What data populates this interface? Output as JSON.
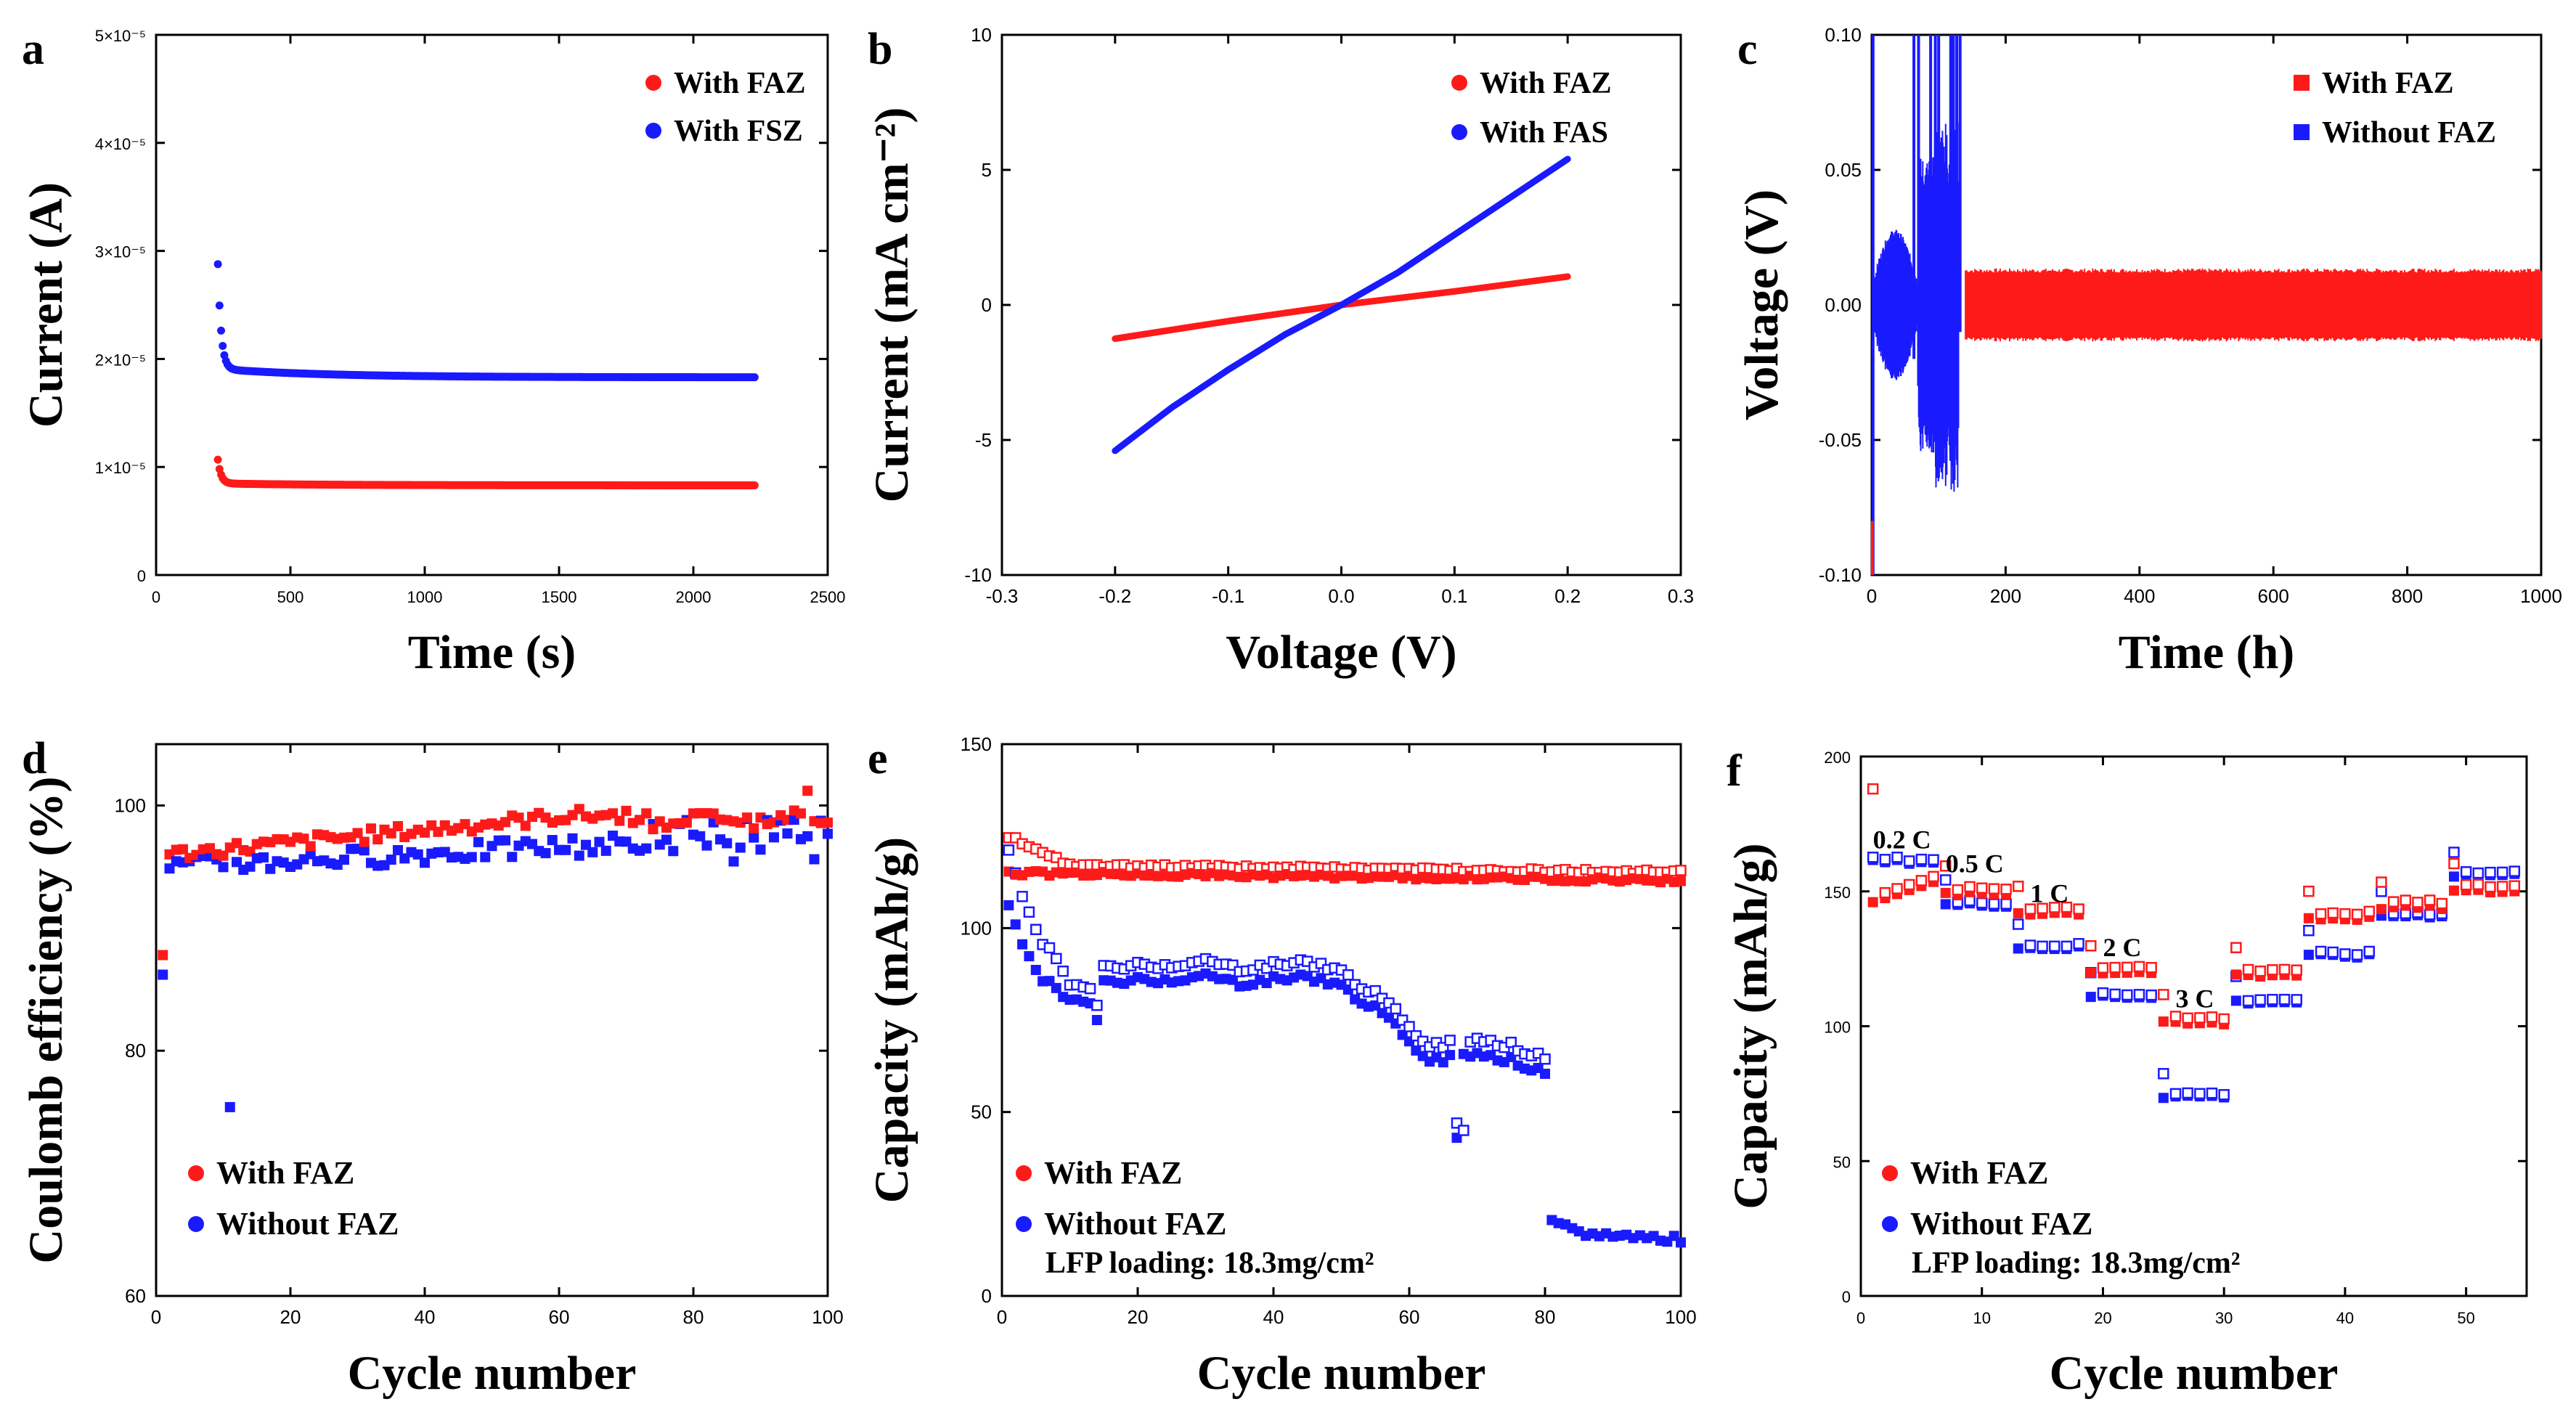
{
  "colors": {
    "red": "#ff1a1a",
    "blue": "#1a1aff",
    "axis": "#000000"
  },
  "chart_data": [
    {
      "panel": "a",
      "type": "scatter",
      "xlabel": "Time (s)",
      "ylabel": "Current (A)",
      "xlim": [
        0,
        2500
      ],
      "ylim": [
        0,
        5e-05
      ],
      "xticks": [
        "0",
        "500",
        "1000",
        "1500",
        "2000",
        "2500"
      ],
      "yticks": [
        "0",
        "1×10⁻⁵",
        "2×10⁻⁵",
        "3×10⁻⁵",
        "4×10⁻⁵",
        "5×10⁻⁵"
      ],
      "legend": [
        "With FAZ",
        "With FSZ"
      ],
      "series": [
        {
          "name": "With FAZ",
          "color": "red",
          "start_x": 230,
          "end_x": 2230,
          "peak": 1.05e-05,
          "steady": 8.3e-06
        },
        {
          "name": "With FSZ",
          "color": "blue",
          "start_x": 230,
          "end_x": 2230,
          "peak": 2.8e-05,
          "steady": 1.83e-05
        }
      ]
    },
    {
      "panel": "b",
      "type": "line",
      "xlabel": "Voltage (V)",
      "ylabel": "Current (mA cm⁻²)",
      "xlim": [
        -0.3,
        0.3
      ],
      "ylim": [
        -10,
        10
      ],
      "xticks": [
        "-0.3",
        "-0.2",
        "-0.1",
        "0.0",
        "0.1",
        "0.2",
        "0.3"
      ],
      "yticks": [
        "-10",
        "-5",
        "0",
        "5",
        "10"
      ],
      "legend": [
        "With FAZ",
        "With FAS"
      ],
      "series": [
        {
          "name": "With FAZ",
          "color": "red",
          "x": [
            -0.2,
            -0.1,
            0,
            0.1,
            0.2
          ],
          "y": [
            -1.25,
            -0.6,
            0,
            0.5,
            1.05
          ]
        },
        {
          "name": "With FAS",
          "color": "blue",
          "x": [
            -0.2,
            -0.15,
            -0.1,
            -0.05,
            0,
            0.05,
            0.1,
            0.15,
            0.2
          ],
          "y": [
            -5.4,
            -3.8,
            -2.4,
            -1.1,
            0,
            1.2,
            2.6,
            4.0,
            5.4
          ]
        }
      ]
    },
    {
      "panel": "c",
      "type": "line",
      "xlabel": "Time (h)",
      "ylabel": "Voltage (V)",
      "xlim": [
        0,
        1000
      ],
      "ylim": [
        -0.1,
        0.1
      ],
      "xticks": [
        "0",
        "200",
        "400",
        "600",
        "800",
        "1000"
      ],
      "yticks": [
        "-0.10",
        "-0.05",
        "0.00",
        "0.05",
        "0.10"
      ],
      "legend": [
        "With FAZ",
        "Without FAZ"
      ],
      "series": [
        {
          "name": "With FAZ",
          "color": "red",
          "x_range": [
            0,
            1000
          ],
          "band": [
            -0.012,
            0.012
          ]
        },
        {
          "name": "Without FAZ",
          "color": "blue",
          "x_range": [
            0,
            140
          ],
          "band": [
            -0.055,
            0.1
          ],
          "short_circuit_at": 130
        }
      ]
    },
    {
      "panel": "d",
      "type": "scatter",
      "xlabel": "Cycle number",
      "ylabel": "Coulomb efficiency (%)",
      "xlim": [
        0,
        100
      ],
      "ylim": [
        60,
        105
      ],
      "xticks": [
        "0",
        "20",
        "40",
        "60",
        "80",
        "100"
      ],
      "yticks": [
        "60",
        "80",
        "100"
      ],
      "legend": [
        "With FAZ",
        "Without FAZ"
      ],
      "series": [
        {
          "name": "With FAZ",
          "color": "red",
          "first": 87.8,
          "start": 96,
          "end": 99.2,
          "outlier": [
            97,
            101.2
          ]
        },
        {
          "name": "Without FAZ",
          "color": "blue",
          "first": 86.2,
          "start": 95,
          "end": 97.5,
          "outlier": [
            11,
            75.4
          ]
        }
      ]
    },
    {
      "panel": "e",
      "type": "scatter",
      "xlabel": "Cycle number",
      "ylabel": "Capacity (mAh/g)",
      "xlim": [
        0,
        100
      ],
      "ylim": [
        0,
        150
      ],
      "xticks": [
        "0",
        "20",
        "40",
        "60",
        "80",
        "100"
      ],
      "yticks": [
        "0",
        "50",
        "100",
        "150"
      ],
      "legend": [
        "With FAZ",
        "Without FAZ"
      ],
      "annotation": "LFP loading: 18.3mg/cm²",
      "series": [
        {
          "name": "With FAZ",
          "color": "red",
          "charge_start": 125,
          "level": 115,
          "end": 113
        },
        {
          "name": "Without FAZ",
          "color": "blue",
          "cycles": [
            1,
            3,
            5,
            8,
            10,
            13,
            15,
            20,
            25,
            30,
            35,
            40,
            45,
            50,
            55,
            60,
            62,
            65,
            68,
            70,
            75,
            79,
            80,
            81,
            85,
            90,
            95,
            100
          ],
          "discharge": [
            107,
            96,
            88,
            83,
            81,
            79,
            85,
            86,
            86,
            87,
            85,
            86,
            87,
            84,
            78,
            70,
            65,
            64,
            66,
            66,
            64,
            61,
            60,
            20,
            17,
            16.5,
            16,
            15.5
          ]
        }
      ]
    },
    {
      "panel": "f",
      "type": "scatter",
      "xlabel": "Cycle number",
      "ylabel": "Capacity (mAh/g)",
      "xlim": [
        0,
        55
      ],
      "ylim": [
        0,
        200
      ],
      "xticks": [
        "0",
        "10",
        "20",
        "30",
        "40",
        "50"
      ],
      "yticks": [
        "0",
        "50",
        "100",
        "150",
        "200"
      ],
      "legend": [
        "With FAZ",
        "Without FAZ"
      ],
      "annotation": "LFP loading: 18.3mg/cm²",
      "rate_labels": [
        "0.2 C",
        "0.5 C",
        "1 C",
        "2 C",
        "3 C"
      ],
      "series": [
        {
          "name": "With FAZ",
          "color": "red",
          "steps": [
            [
              1,
              6,
              152
            ],
            [
              7,
              12,
              149
            ],
            [
              13,
              18,
              142
            ],
            [
              19,
              24,
              120
            ],
            [
              25,
              30,
              101
            ],
            [
              31,
              36,
              119
            ],
            [
              37,
              42,
              140
            ],
            [
              43,
              48,
              144
            ],
            [
              49,
              54,
              150
            ]
          ]
        },
        {
          "name": "Without FAZ",
          "color": "blue",
          "steps": [
            [
              1,
              6,
              161
            ],
            [
              7,
              12,
              145
            ],
            [
              13,
              18,
              129
            ],
            [
              19,
              24,
              111
            ],
            [
              25,
              30,
              74
            ],
            [
              31,
              36,
              109
            ],
            [
              37,
              42,
              126
            ],
            [
              43,
              48,
              141
            ],
            [
              49,
              54,
              156
            ]
          ]
        }
      ]
    }
  ]
}
